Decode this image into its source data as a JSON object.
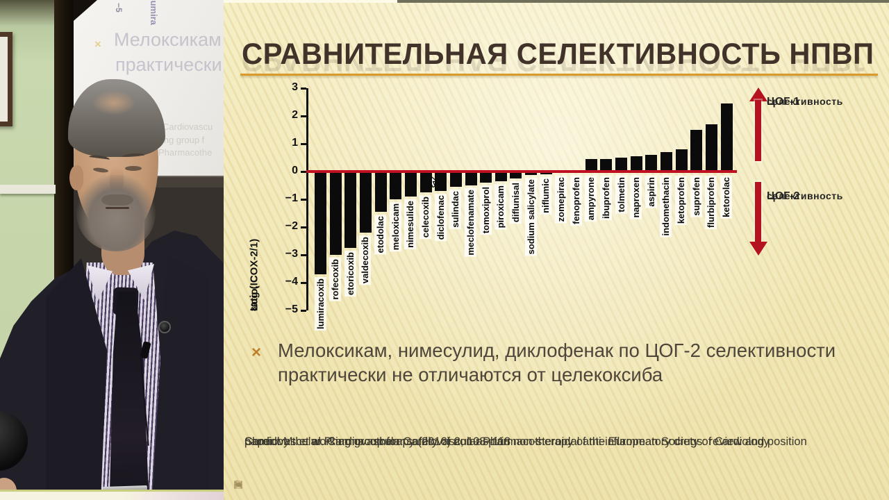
{
  "left_scene": {
    "projected_slide_ghost": {
      "axis_fragment": "−5",
      "bar_label_fragment": "lumira",
      "bullet_marker": "×",
      "bullet_line1": "Мелоксикам",
      "bullet_line2": "практически",
      "citation_fragment1": "Cardiovascu",
      "citation_fragment2": "rking group f",
      "citation_fragment3": "Pharmacothe"
    }
  },
  "slide": {
    "title": "СРАВНИТЕЛЬНАЯ СЕЛЕКТИВНОСТЬ НПВП",
    "bullet": {
      "marker": "×",
      "text": "Мелоксикам, нимесулид, диклофенак по ЦОГ-2 селективности практически не отличаются от целекоксиба"
    },
    "citation": {
      "line1": "Shmidt M. et al. Cardiovascular safety of non-aspirin non-steroidal anti-inflammatory drugs: review and position",
      "line2": "paper by the working group for Cardiovascular Pharmacotherapy of the European Society of Cardiology",
      "line3": "Cardiovascular Pharmacotherapy (2016) 2, 108–118"
    },
    "toolbar_icons": {
      "prev": "◀",
      "pen": "✎",
      "slides": "▤",
      "next": "▶"
    }
  },
  "chart_data": {
    "type": "bar",
    "title": "",
    "xlabel": "",
    "ylabel": "Log (IC80 ratio, COX-2/1)",
    "ylabel_parts": [
      "Log (IC",
      "80",
      " ratio, COX-2/1)"
    ],
    "ylim": [
      -5,
      3
    ],
    "yticks": [
      3,
      2,
      1,
      0,
      -1,
      -2,
      -3,
      -4,
      -5
    ],
    "grid": false,
    "bar_color": "#0b0b0b",
    "zero_line_color": "#bf1021",
    "categories": [
      "lumiracoxib",
      "rofecoxib",
      "etoricoxib",
      "valdecoxib",
      "etodolac",
      "meloxicam",
      "nimesulide",
      "celecoxib",
      "diclofenac",
      "sulindac",
      "meclofenamate",
      "tomoxiprol",
      "piroxicam",
      "diflunisal",
      "sodium salicylate",
      "niflumic",
      "zomepirac",
      "fenoprofen",
      "ampyrone",
      "ibuprofen",
      "tolmetin",
      "naproxen",
      "aspirin",
      "indomethacin",
      "ketoprofen",
      "suprofen",
      "flurbiprofen",
      "ketorolac"
    ],
    "values": [
      -3.7,
      -3.0,
      -2.75,
      -2.2,
      -1.45,
      -1.0,
      -0.9,
      -0.75,
      -0.7,
      -0.55,
      -0.5,
      -0.4,
      -0.35,
      -0.25,
      -0.12,
      -0.1,
      -0.05,
      0.05,
      0.45,
      0.45,
      0.5,
      0.55,
      0.6,
      0.7,
      0.8,
      1.5,
      1.7,
      2.45
    ],
    "annotations": {
      "cox1_line1": "ЦОГ-1",
      "cox1_line2": "селективность",
      "cox2_line1": "ЦОГ-2",
      "cox2_line2": "селективность"
    },
    "legend_position": "right"
  },
  "colors": {
    "slide_background": "#f3ecc0",
    "title": "#42332a",
    "title_underline": "#d89a2b",
    "selectivity_arrows": "#b5121f",
    "zero_line": "#bf1021",
    "bars": "#0b0b0b",
    "bullet_marker": "#bf7f2a",
    "bullet_text": "#4e463a",
    "citation_text": "#3b382e",
    "wall_green": "#c9d8ae"
  }
}
